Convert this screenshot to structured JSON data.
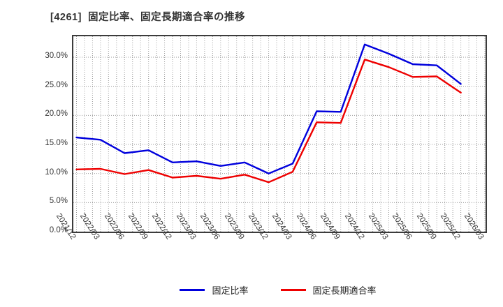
{
  "header": {
    "title": "[4261]  固定比率、固定長期適合率の推移"
  },
  "chart_data": {
    "type": "line",
    "title": "[4261]  固定比率、固定長期適合率の推移",
    "categories": [
      "2021/12",
      "2022/03",
      "2022/06",
      "2022/09",
      "2022/12",
      "2023/03",
      "2023/06",
      "2023/09",
      "2023/12",
      "2024/03",
      "2024/06",
      "2024/09",
      "2024/12",
      "2025/03",
      "2025/06",
      "2025/09",
      "2025/12",
      "2026/03"
    ],
    "series": [
      {
        "name": "固定比率",
        "color": "#0000dd",
        "values": [
          16.2,
          15.8,
          13.5,
          14.0,
          11.9,
          12.1,
          11.3,
          11.9,
          10.0,
          11.7,
          20.7,
          20.6,
          32.2,
          30.6,
          28.8,
          28.6,
          25.4
        ]
      },
      {
        "name": "固定長期適合率",
        "color": "#ee0000",
        "values": [
          10.7,
          10.8,
          9.9,
          10.6,
          9.3,
          9.6,
          9.1,
          9.8,
          8.5,
          10.3,
          18.8,
          18.7,
          29.6,
          28.3,
          26.6,
          26.7,
          23.9
        ]
      }
    ],
    "xlabel": "",
    "ylabel": "",
    "ylim": [
      0,
      33.6
    ],
    "ytick_step": 5,
    "yticks": [
      "0.0%",
      "5.0%",
      "10.0%",
      "15.0%",
      "20.0%",
      "25.0%",
      "30.0%"
    ],
    "grid": "dotted; vertical lines monthly, horizontal every 5%",
    "legend_position": "bottom-center",
    "frame_color": "#3c3c3c",
    "grid_color": "#9a9a9a"
  }
}
